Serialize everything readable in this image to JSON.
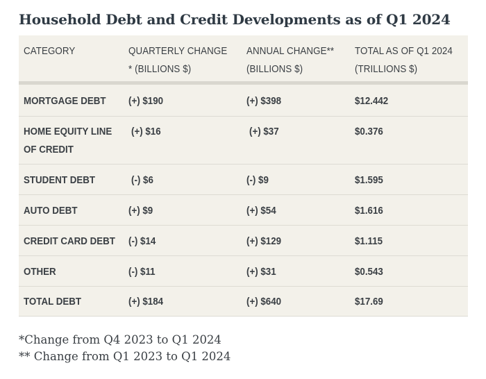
{
  "title": "Household Debt and Credit Developments as of Q1 2024",
  "table": {
    "headers": [
      [
        "CATEGORY"
      ],
      [
        "QUARTERLY CHANGE",
        "* (BILLIONS $)"
      ],
      [
        "ANNUAL CHANGE**",
        "(BILLIONS $)"
      ],
      [
        "TOTAL AS OF Q1 2024",
        "(TRILLIONS $)"
      ]
    ],
    "rows": [
      {
        "category": [
          "MORTGAGE DEBT"
        ],
        "quarterly": "(+) $190",
        "annual": "(+) $398",
        "total": "$12.442"
      },
      {
        "category": [
          "HOME EQUITY LINE",
          "OF CREDIT"
        ],
        "quarterly": "(+) $16",
        "annual": "(+) $37",
        "total": "$0.376"
      },
      {
        "category": [
          "STUDENT DEBT"
        ],
        "quarterly": "(-) $6",
        "annual": "(-) $9",
        "total": "$1.595"
      },
      {
        "category": [
          "AUTO DEBT"
        ],
        "quarterly": "(+) $9",
        "annual": "(+) $54",
        "total": "$1.616"
      },
      {
        "category": [
          "CREDIT CARD DEBT"
        ],
        "quarterly": "(-) $14",
        "annual": "(+) $129",
        "total": "$1.115"
      },
      {
        "category": [
          "OTHER"
        ],
        "quarterly": "(-) $11",
        "annual": "(+) $31",
        "total": "$0.543"
      },
      {
        "category": [
          "TOTAL DEBT"
        ],
        "quarterly": "(+) $184",
        "annual": "(+) $640",
        "total": "$17.69"
      }
    ]
  },
  "footnotes": [
    "*Change from Q4 2023 to Q1 2024",
    "** Change from Q1 2023 to Q1 2024"
  ]
}
